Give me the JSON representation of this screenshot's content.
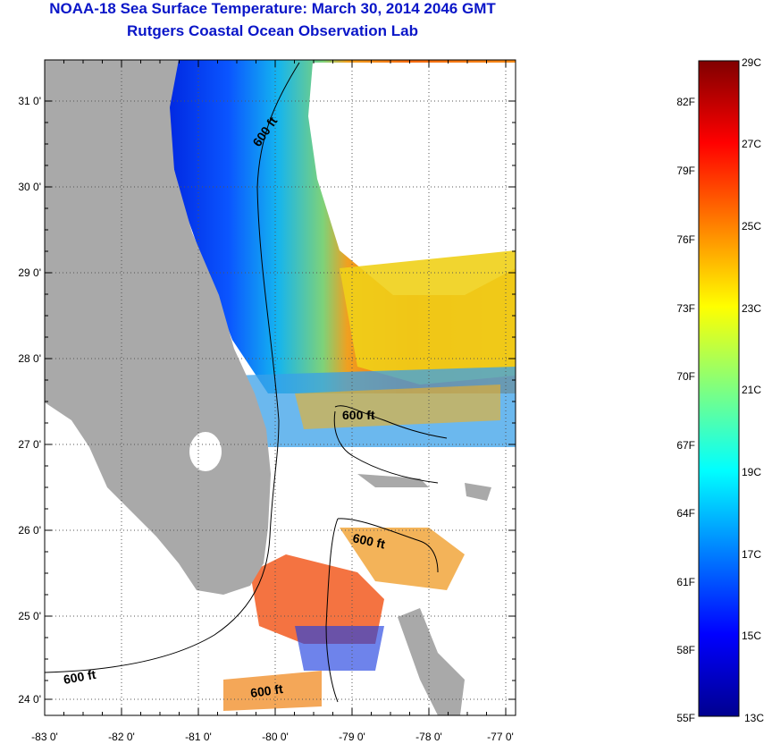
{
  "title": "NOAA-18 Sea Surface Temperature:  March 30, 2014 2046 GMT",
  "subtitle": "Rutgers Coastal Ocean Observation Lab",
  "lat_labels": [
    "31 0'",
    "30 0'",
    "29 0'",
    "28 0'",
    "27 0'",
    "26 0'",
    "25 0'",
    "24 0'"
  ],
  "lon_labels": [
    "-83 0'",
    "-82 0'",
    "-81 0'",
    "-80 0'",
    "-79 0'",
    "-78 0'",
    "-77 0'"
  ],
  "contour_label": "600 ft",
  "colorbar": {
    "celsius": [
      "29C",
      "27C",
      "25C",
      "23C",
      "21C",
      "19C",
      "17C",
      "15C",
      "13C"
    ],
    "fahrenheit": [
      "82F",
      "79F",
      "76F",
      "73F",
      "70F",
      "67F",
      "64F",
      "61F",
      "58F",
      "55F"
    ],
    "min_c": 13,
    "max_c": 29
  },
  "colors": {
    "title": "#0a16c8",
    "land": "#a9a9a9",
    "cloud": "#ffffff"
  }
}
